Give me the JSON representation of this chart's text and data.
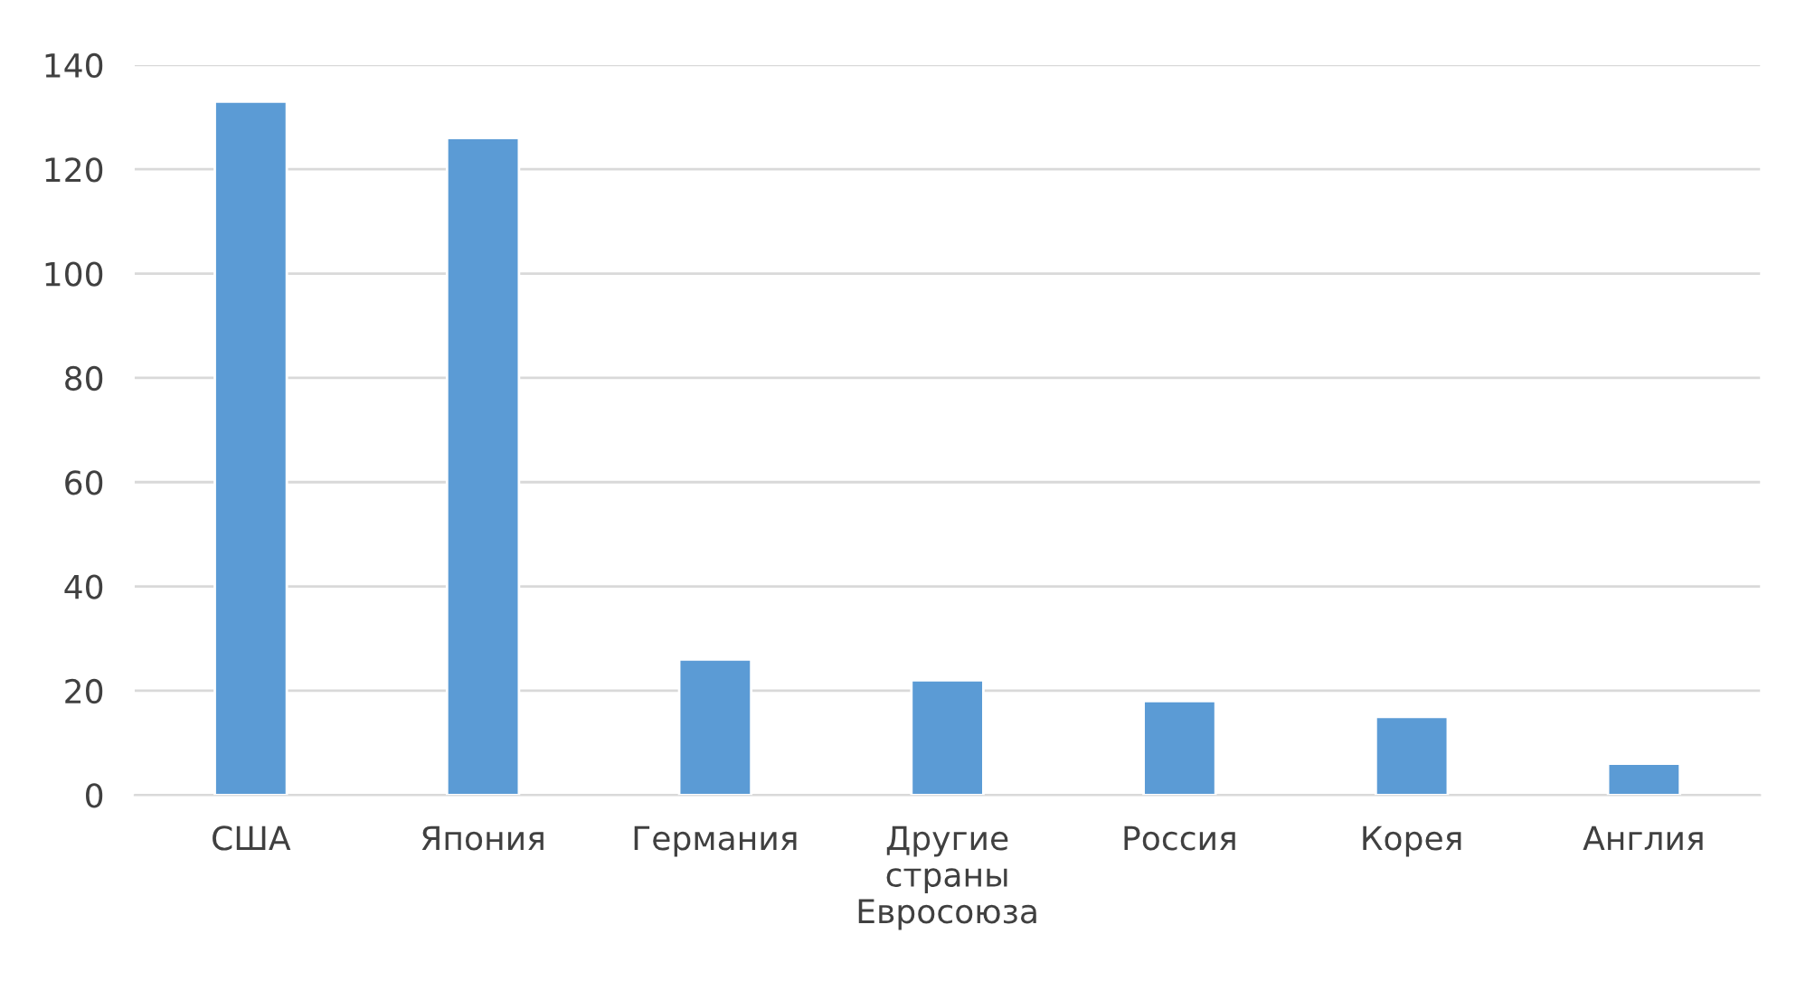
{
  "chart_data": {
    "type": "bar",
    "categories": [
      "США",
      "Япония",
      "Германия",
      "Другие\nстраны\nЕвросоюза",
      "Россия",
      "Корея",
      "Англия"
    ],
    "values": [
      133,
      126,
      26,
      22,
      18,
      15,
      6
    ],
    "color": "#5b9bd5",
    "ylim": [
      0,
      140
    ],
    "yticks": [
      0,
      20,
      40,
      60,
      80,
      100,
      120,
      140
    ],
    "grid": "y"
  }
}
